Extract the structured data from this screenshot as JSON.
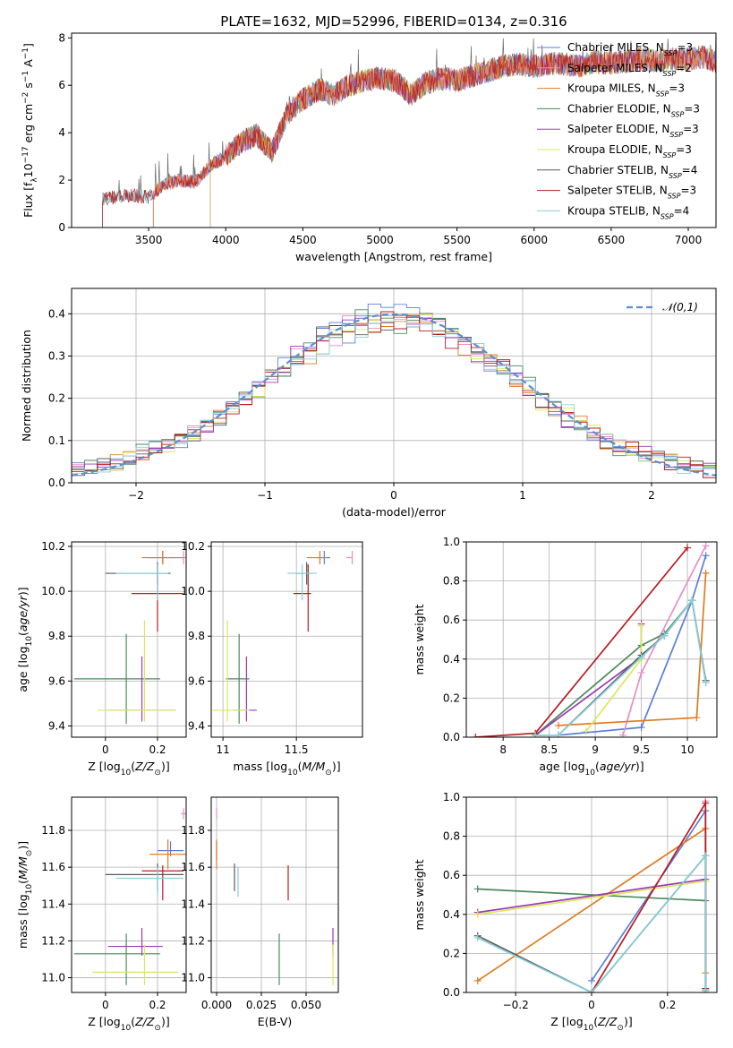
{
  "figure": {
    "title": "PLATE=1632, MJD=52996, FIBERID=0134, z=0.316"
  },
  "colors": {
    "series": [
      "#5b7fd6",
      "#e58fc8",
      "#e07b20",
      "#4c8a5c",
      "#9a3ab8",
      "#dce85a",
      "#5c5c5c",
      "#b81c22",
      "#86d0d8"
    ]
  },
  "chart_data": [
    {
      "id": "spectrum",
      "type": "line",
      "title": "PLATE=1632, MJD=52996, FIBERID=0134, z=0.316",
      "xlabel": "wavelength [Angstrom, rest frame]",
      "ylabel": "Flux [f_λ 10^-17 erg cm^-2 s^-1 A^-1]",
      "xlim": [
        3000,
        7180
      ],
      "ylim": [
        0,
        8.2
      ],
      "xticks": [
        3500,
        4000,
        4500,
        5000,
        5500,
        6000,
        6500,
        7000
      ],
      "yticks": [
        0,
        2,
        4,
        6,
        8
      ],
      "legend": "top-right",
      "series": [
        {
          "name": "Chabrier MILES, N_SSP=3",
          "start": 3530
        },
        {
          "name": "Salpeter MILES, N_SSP=2",
          "start": 3530
        },
        {
          "name": "Kroupa MILES, N_SSP=3",
          "start": 3530
        },
        {
          "name": "Chabrier ELODIE, N_SSP=3",
          "start": 3900
        },
        {
          "name": "Salpeter ELODIE, N_SSP=3",
          "start": 3900
        },
        {
          "name": "Kroupa ELODIE, N_SSP=3",
          "start": 3900
        },
        {
          "name": "Chabrier STELIB, N_SSP=4",
          "start": 3200
        },
        {
          "name": "Salpeter STELIB, N_SSP=3",
          "start": 3200
        },
        {
          "name": "Kroupa STELIB, N_SSP=4",
          "start": 3200
        }
      ],
      "observed_envelope": {
        "x": [
          3200,
          3300,
          3400,
          3500,
          3600,
          3700,
          3800,
          3900,
          4000,
          4100,
          4200,
          4300,
          4400,
          4500,
          4600,
          4700,
          4800,
          4900,
          5000,
          5100,
          5200,
          5300,
          5400,
          5500,
          5600,
          5700,
          5800,
          5900,
          6000,
          6100,
          6200,
          6300,
          6400,
          6500,
          6600,
          6700,
          6800,
          6900,
          7000,
          7100,
          7180
        ],
        "y": [
          1.2,
          1.3,
          1.35,
          1.3,
          1.8,
          2.0,
          1.9,
          2.6,
          3.0,
          3.6,
          3.9,
          3.2,
          4.8,
          5.4,
          5.8,
          5.6,
          6.0,
          6.2,
          6.3,
          6.2,
          5.6,
          6.1,
          6.3,
          6.2,
          6.4,
          6.6,
          6.8,
          6.9,
          6.8,
          6.9,
          6.9,
          6.8,
          7.0,
          6.9,
          7.0,
          7.1,
          7.0,
          7.1,
          7.1,
          7.2,
          7.0
        ]
      }
    },
    {
      "id": "residuals",
      "type": "histogram",
      "xlabel": "(data-model)/error",
      "ylabel": "Normed distribution",
      "xlim": [
        -2.5,
        2.5
      ],
      "ylim": [
        0,
        0.46
      ],
      "xticks": [
        -2,
        -1,
        0,
        1,
        2
      ],
      "yticks": [
        0.0,
        0.1,
        0.2,
        0.3,
        0.4
      ],
      "grid": true,
      "legend": "top-right",
      "reference_curve": {
        "name": "𝒩(0,1)",
        "style": "dashed"
      }
    },
    {
      "id": "age-vs-Z",
      "type": "errorbar",
      "xlabel": "Z [log10(Z/Z⊙)]",
      "ylabel": "age  [log10(age/yr)]",
      "xlim": [
        -0.13,
        0.31
      ],
      "ylim": [
        9.35,
        10.22
      ],
      "xticks": [
        0.0,
        0.2
      ],
      "yticks": [
        9.4,
        9.6,
        9.8,
        10.0,
        10.2
      ],
      "grid": true,
      "points": [
        {
          "s": 0,
          "x": 0.22,
          "y": 10.15,
          "xerr": [
            0.06,
            0.06
          ],
          "yerr": [
            0.03,
            0.03
          ]
        },
        {
          "s": 1,
          "x": 0.3,
          "y": 10.15,
          "xerr": [
            0.01,
            0.01
          ],
          "yerr": [
            0.03,
            0.03
          ]
        },
        {
          "s": 2,
          "x": 0.22,
          "y": 10.15,
          "xerr": [
            0.08,
            0.08
          ],
          "yerr": [
            0.03,
            0.03
          ]
        },
        {
          "s": 3,
          "x": 0.08,
          "y": 9.61,
          "xerr": [
            0.2,
            0.13
          ],
          "yerr": [
            0.2,
            0.2
          ]
        },
        {
          "s": 4,
          "x": 0.14,
          "y": 9.47,
          "xerr": [
            0.13,
            0.13
          ],
          "yerr": [
            0.05,
            0.24
          ]
        },
        {
          "s": 5,
          "x": 0.15,
          "y": 9.47,
          "xerr": [
            0.18,
            0.12
          ],
          "yerr": [
            0.05,
            0.4
          ]
        },
        {
          "s": 6,
          "x": 0.2,
          "y": 10.08,
          "xerr": [
            0.2,
            0.05
          ],
          "yerr": [
            0.05,
            0.05
          ]
        },
        {
          "s": 7,
          "x": 0.2,
          "y": 9.99,
          "xerr": [
            0.1,
            0.1
          ],
          "yerr": [
            0.17,
            0.13
          ]
        },
        {
          "s": 8,
          "x": 0.2,
          "y": 10.08,
          "xerr": [
            0.16,
            0.04
          ],
          "yerr": [
            0.12,
            0.04
          ]
        }
      ]
    },
    {
      "id": "age-vs-mass",
      "type": "errorbar",
      "xlabel": "mass [log10(M/M⊙)]",
      "ylabel": "",
      "xlim": [
        10.92,
        11.95
      ],
      "ylim": [
        9.35,
        10.22
      ],
      "xticks": [
        11.0,
        11.5
      ],
      "yticks": [
        9.4,
        9.6,
        9.8,
        10.0,
        10.2
      ],
      "grid": true,
      "points": [
        {
          "s": 0,
          "x": 11.69,
          "y": 10.15,
          "xerr": [
            0.05,
            0.04
          ],
          "yerr": [
            0.03,
            0.03
          ]
        },
        {
          "s": 1,
          "x": 11.88,
          "y": 10.15,
          "xerr": [
            0.04,
            0.0
          ],
          "yerr": [
            0.03,
            0.03
          ]
        },
        {
          "s": 2,
          "x": 11.66,
          "y": 10.15,
          "xerr": [
            0.09,
            0.05
          ],
          "yerr": [
            0.03,
            0.03
          ]
        },
        {
          "s": 3,
          "x": 11.11,
          "y": 9.61,
          "xerr": [
            0.09,
            0.07
          ],
          "yerr": [
            0.2,
            0.2
          ]
        },
        {
          "s": 4,
          "x": 11.16,
          "y": 9.47,
          "xerr": [
            0.09,
            0.07
          ],
          "yerr": [
            0.05,
            0.24
          ]
        },
        {
          "s": 5,
          "x": 11.03,
          "y": 9.47,
          "xerr": [
            0.1,
            0.15
          ],
          "yerr": [
            0.05,
            0.4
          ]
        },
        {
          "s": 6,
          "x": 11.57,
          "y": 10.08,
          "xerr": [
            0.07,
            0.04
          ],
          "yerr": [
            0.05,
            0.05
          ]
        },
        {
          "s": 7,
          "x": 11.58,
          "y": 9.99,
          "xerr": [
            0.1,
            0.02
          ],
          "yerr": [
            0.17,
            0.13
          ]
        },
        {
          "s": 8,
          "x": 11.54,
          "y": 10.08,
          "xerr": [
            0.1,
            0.1
          ],
          "yerr": [
            0.12,
            0.04
          ]
        }
      ]
    },
    {
      "id": "weight-vs-age",
      "type": "line",
      "xlabel": "age  [log10(age/yr)]",
      "ylabel": "mass weight",
      "xlim": [
        7.6,
        10.32
      ],
      "ylim": [
        0,
        1
      ],
      "xticks": [
        8.0,
        8.5,
        9.0,
        9.5,
        10.0
      ],
      "yticks": [
        0.0,
        0.2,
        0.4,
        0.6,
        0.8,
        1.0
      ],
      "grid": true,
      "series": [
        {
          "s": 0,
          "x": [
            8.6,
            9.5,
            10.05,
            10.2
          ],
          "y": [
            0.01,
            0.05,
            0.7,
            0.93
          ]
        },
        {
          "s": 1,
          "x": [
            9.3,
            9.5,
            10.2
          ],
          "y": [
            0.01,
            0.33,
            0.98
          ]
        },
        {
          "s": 2,
          "x": [
            8.6,
            10.1,
            10.2
          ],
          "y": [
            0.06,
            0.1,
            0.84
          ]
        },
        {
          "s": 3,
          "x": [
            8.35,
            9.5,
            9.75,
            10.05,
            10.2
          ],
          "y": [
            0.01,
            0.47,
            0.53,
            0.7,
            0.28
          ]
        },
        {
          "s": 4,
          "x": [
            8.35,
            9.5,
            9.5
          ],
          "y": [
            0.01,
            0.41,
            0.58
          ]
        },
        {
          "s": 5,
          "x": [
            8.9,
            9.5,
            9.5
          ],
          "y": [
            0.03,
            0.4,
            0.57
          ]
        },
        {
          "s": 6,
          "x": [
            8.35,
            8.6,
            9.5,
            9.75,
            10.05,
            10.2
          ],
          "y": [
            0.01,
            0.01,
            0.42,
            0.52,
            0.7,
            0.29
          ]
        },
        {
          "s": 7,
          "x": [
            7.7,
            8.35,
            10.0
          ],
          "y": [
            0.0,
            0.02,
            0.97
          ]
        },
        {
          "s": 8,
          "x": [
            8.35,
            8.6,
            9.5,
            9.75,
            10.05,
            10.2
          ],
          "y": [
            0.01,
            0.01,
            0.41,
            0.52,
            0.7,
            0.28
          ]
        }
      ]
    },
    {
      "id": "mass-vs-Z",
      "type": "errorbar",
      "xlabel": "Z [log10(Z/Z⊙)]",
      "ylabel": "mass [log10(M/M⊙)]",
      "xlim": [
        -0.13,
        0.31
      ],
      "ylim": [
        10.92,
        11.98
      ],
      "xticks": [
        0.0,
        0.2
      ],
      "yticks": [
        11.0,
        11.2,
        11.4,
        11.6,
        11.8
      ],
      "grid": true,
      "points": [
        {
          "s": 0,
          "x": 0.25,
          "y": 11.69,
          "xerr": [
            0.05,
            0.05
          ],
          "yerr": [
            0.03,
            0.05
          ]
        },
        {
          "s": 1,
          "x": 0.3,
          "y": 11.89,
          "xerr": [
            0.01,
            0.01
          ],
          "yerr": [
            0.03,
            0.03
          ]
        },
        {
          "s": 2,
          "x": 0.24,
          "y": 11.67,
          "xerr": [
            0.07,
            0.07
          ],
          "yerr": [
            0.08,
            0.08
          ]
        },
        {
          "s": 3,
          "x": 0.08,
          "y": 11.13,
          "xerr": [
            0.2,
            0.13
          ],
          "yerr": [
            0.17,
            0.11
          ]
        },
        {
          "s": 4,
          "x": 0.14,
          "y": 11.17,
          "xerr": [
            0.13,
            0.08
          ],
          "yerr": [
            0.05,
            0.1
          ]
        },
        {
          "s": 5,
          "x": 0.15,
          "y": 11.03,
          "xerr": [
            0.2,
            0.13
          ],
          "yerr": [
            0.07,
            0.15
          ]
        },
        {
          "s": 6,
          "x": 0.2,
          "y": 11.56,
          "xerr": [
            0.2,
            0.1
          ],
          "yerr": [
            0.09,
            0.06
          ]
        },
        {
          "s": 7,
          "x": 0.22,
          "y": 11.58,
          "xerr": [
            0.08,
            0.08
          ],
          "yerr": [
            0.16,
            0.03
          ]
        },
        {
          "s": 8,
          "x": 0.2,
          "y": 11.54,
          "xerr": [
            0.16,
            0.1
          ],
          "yerr": [
            0.1,
            0.06
          ]
        }
      ]
    },
    {
      "id": "mass-vs-ebv",
      "type": "errorbar",
      "xlabel": "E(B-V)",
      "ylabel": "",
      "xlim": [
        -0.003,
        0.068
      ],
      "ylim": [
        10.92,
        11.98
      ],
      "xticks": [
        0.0,
        0.025,
        0.05
      ],
      "xticklabels": [
        "0.000",
        "0.025",
        "0.050"
      ],
      "yticks": [
        11.0,
        11.2,
        11.4,
        11.6,
        11.8
      ],
      "grid": true,
      "points": [
        {
          "s": 0,
          "x": 0.0,
          "y": 11.69,
          "xerr": [
            0,
            0
          ],
          "yerr": [
            0.05,
            0.05
          ]
        },
        {
          "s": 1,
          "x": 0.0,
          "y": 11.89,
          "xerr": [
            0,
            0
          ],
          "yerr": [
            0.03,
            0.03
          ]
        },
        {
          "s": 2,
          "x": 0.0,
          "y": 11.67,
          "xerr": [
            0,
            0
          ],
          "yerr": [
            0.08,
            0.08
          ]
        },
        {
          "s": 3,
          "x": 0.035,
          "y": 11.13,
          "xerr": [
            0,
            0
          ],
          "yerr": [
            0.17,
            0.11
          ]
        },
        {
          "s": 4,
          "x": 0.065,
          "y": 11.17,
          "xerr": [
            0,
            0
          ],
          "yerr": [
            0.05,
            0.1
          ]
        },
        {
          "s": 5,
          "x": 0.065,
          "y": 11.03,
          "xerr": [
            0,
            0
          ],
          "yerr": [
            0.07,
            0.15
          ]
        },
        {
          "s": 6,
          "x": 0.01,
          "y": 11.56,
          "xerr": [
            0,
            0
          ],
          "yerr": [
            0.09,
            0.06
          ]
        },
        {
          "s": 7,
          "x": 0.04,
          "y": 11.58,
          "xerr": [
            0,
            0
          ],
          "yerr": [
            0.16,
            0.03
          ]
        },
        {
          "s": 8,
          "x": 0.012,
          "y": 11.54,
          "xerr": [
            0,
            0
          ],
          "yerr": [
            0.1,
            0.06
          ]
        }
      ]
    },
    {
      "id": "weight-vs-Z",
      "type": "line",
      "xlabel": "Z [log10(Z/Z⊙)]",
      "ylabel": "mass weight",
      "xlim": [
        -0.33,
        0.33
      ],
      "ylim": [
        0,
        1
      ],
      "xticks": [
        -0.2,
        0.0,
        0.2
      ],
      "yticks": [
        0.0,
        0.2,
        0.4,
        0.6,
        0.8,
        1.0
      ],
      "grid": true,
      "series": [
        {
          "s": 0,
          "x": [
            0.0,
            0.3,
            0.3
          ],
          "y": [
            0.06,
            0.93,
            0.0
          ]
        },
        {
          "s": 1,
          "x": [
            0.3,
            0.3
          ],
          "y": [
            0.98,
            0.02
          ]
        },
        {
          "s": 2,
          "x": [
            -0.3,
            0.3,
            0.3
          ],
          "y": [
            0.06,
            0.84,
            0.1
          ]
        },
        {
          "s": 3,
          "x": [
            -0.3,
            0.3
          ],
          "y": [
            0.53,
            0.47
          ]
        },
        {
          "s": 4,
          "x": [
            -0.3,
            0.3
          ],
          "y": [
            0.41,
            0.58
          ]
        },
        {
          "s": 5,
          "x": [
            -0.3,
            0.3
          ],
          "y": [
            0.4,
            0.57
          ]
        },
        {
          "s": 6,
          "x": [
            -0.3,
            0.0,
            0.3,
            0.3
          ],
          "y": [
            0.29,
            0.0,
            0.7,
            0.01
          ]
        },
        {
          "s": 7,
          "x": [
            0.0,
            0.3,
            0.3
          ],
          "y": [
            0.0,
            0.97,
            0.02
          ]
        },
        {
          "s": 8,
          "x": [
            -0.3,
            0.0,
            0.3,
            0.3
          ],
          "y": [
            0.28,
            0.0,
            0.7,
            0.01
          ]
        }
      ]
    }
  ]
}
